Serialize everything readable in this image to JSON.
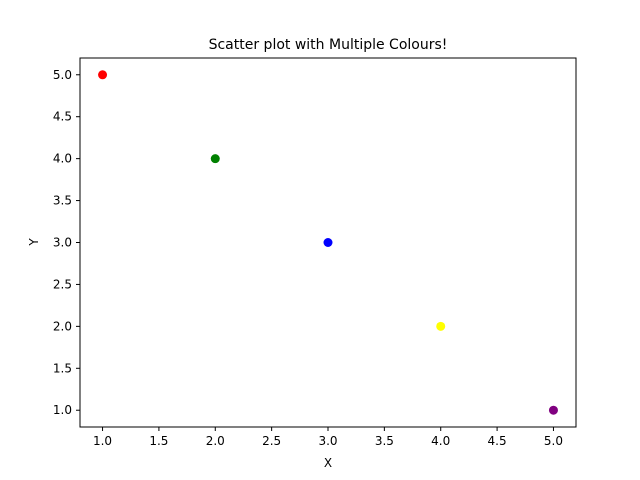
{
  "chart_data": {
    "type": "scatter",
    "title": "Scatter plot with Multiple Colours!",
    "xlabel": "X",
    "ylabel": "Y",
    "xlim": [
      0.8,
      5.2
    ],
    "ylim": [
      0.8,
      5.2
    ],
    "xticks": [
      1.0,
      1.5,
      2.0,
      2.5,
      3.0,
      3.5,
      4.0,
      4.5,
      5.0
    ],
    "yticks": [
      1.0,
      1.5,
      2.0,
      2.5,
      3.0,
      3.5,
      4.0,
      4.5,
      5.0
    ],
    "xtick_labels": [
      "1.0",
      "1.5",
      "2.0",
      "2.5",
      "3.0",
      "3.5",
      "4.0",
      "4.5",
      "5.0"
    ],
    "ytick_labels": [
      "1.0",
      "1.5",
      "2.0",
      "2.5",
      "3.0",
      "3.5",
      "4.0",
      "4.5",
      "5.0"
    ],
    "grid": false,
    "points": [
      {
        "x": 1,
        "y": 5,
        "color": "#ff0000"
      },
      {
        "x": 2,
        "y": 4,
        "color": "#008000"
      },
      {
        "x": 3,
        "y": 3,
        "color": "#0000ff"
      },
      {
        "x": 4,
        "y": 2,
        "color": "#ffff00"
      },
      {
        "x": 5,
        "y": 1,
        "color": "#800080"
      }
    ]
  }
}
